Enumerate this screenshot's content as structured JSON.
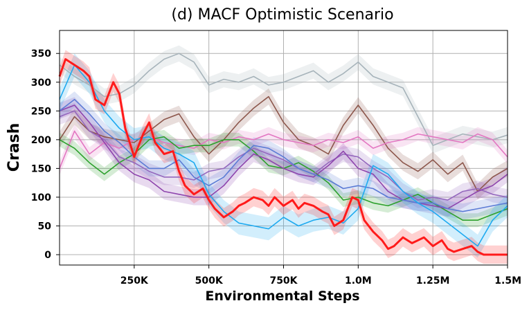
{
  "chart_data": {
    "type": "line",
    "title": "(d) MACF Optimistic Scenario",
    "xlabel": "Environmental Steps",
    "ylabel": "Crash",
    "xlim": [
      0,
      1.5
    ],
    "ylim": [
      -18,
      390
    ],
    "x_unit": "M steps",
    "xticks": [
      {
        "value": 0.25,
        "label": "250K"
      },
      {
        "value": 0.5,
        "label": "500K"
      },
      {
        "value": 0.75,
        "label": "750K"
      },
      {
        "value": 1.0,
        "label": "1.0M"
      },
      {
        "value": 1.25,
        "label": "1.25M"
      },
      {
        "value": 1.5,
        "label": "1.5M"
      }
    ],
    "yticks": [
      0,
      50,
      100,
      150,
      200,
      250,
      300,
      350
    ],
    "grid": true,
    "legend": "none",
    "series": [
      {
        "color": "#a6b3ba",
        "band": 14,
        "x": [
          0,
          0.05,
          0.1,
          0.15,
          0.2,
          0.25,
          0.3,
          0.35,
          0.4,
          0.45,
          0.5,
          0.55,
          0.6,
          0.65,
          0.7,
          0.75,
          0.8,
          0.85,
          0.9,
          0.95,
          1.0,
          1.05,
          1.1,
          1.15,
          1.2,
          1.25,
          1.3,
          1.35,
          1.4,
          1.45,
          1.5
        ],
        "y": [
          330,
          310,
          295,
          275,
          280,
          295,
          320,
          340,
          350,
          335,
          295,
          305,
          300,
          310,
          295,
          300,
          310,
          320,
          300,
          315,
          335,
          310,
          300,
          290,
          240,
          190,
          200,
          210,
          205,
          200,
          208
        ]
      },
      {
        "color": "#8c564b",
        "band": 14,
        "x": [
          0,
          0.05,
          0.1,
          0.15,
          0.2,
          0.25,
          0.3,
          0.35,
          0.4,
          0.45,
          0.5,
          0.55,
          0.6,
          0.65,
          0.7,
          0.75,
          0.8,
          0.85,
          0.9,
          0.95,
          1.0,
          1.05,
          1.1,
          1.15,
          1.2,
          1.25,
          1.3,
          1.35,
          1.4,
          1.45,
          1.5
        ],
        "y": [
          200,
          240,
          215,
          205,
          200,
          195,
          215,
          235,
          245,
          205,
          175,
          200,
          230,
          255,
          275,
          230,
          200,
          190,
          175,
          225,
          260,
          225,
          185,
          160,
          145,
          165,
          140,
          160,
          110,
          135,
          150
        ]
      },
      {
        "color": "#e377c2",
        "band": 12,
        "x": [
          0,
          0.05,
          0.1,
          0.15,
          0.2,
          0.25,
          0.3,
          0.35,
          0.4,
          0.45,
          0.5,
          0.55,
          0.6,
          0.65,
          0.7,
          0.75,
          0.8,
          0.85,
          0.9,
          0.95,
          1.0,
          1.05,
          1.1,
          1.15,
          1.2,
          1.25,
          1.3,
          1.35,
          1.4,
          1.45,
          1.5
        ],
        "y": [
          150,
          215,
          175,
          195,
          185,
          200,
          205,
          195,
          190,
          185,
          200,
          195,
          205,
          200,
          210,
          200,
          195,
          190,
          200,
          195,
          205,
          185,
          195,
          200,
          210,
          205,
          200,
          195,
          210,
          200,
          170
        ]
      },
      {
        "color": "#2ca02c",
        "band": 12,
        "x": [
          0,
          0.05,
          0.1,
          0.15,
          0.2,
          0.25,
          0.3,
          0.35,
          0.4,
          0.45,
          0.5,
          0.55,
          0.6,
          0.65,
          0.7,
          0.75,
          0.8,
          0.85,
          0.9,
          0.95,
          1.0,
          1.05,
          1.1,
          1.15,
          1.2,
          1.25,
          1.3,
          1.35,
          1.4,
          1.45,
          1.5
        ],
        "y": [
          200,
          185,
          160,
          140,
          160,
          175,
          200,
          205,
          185,
          190,
          190,
          200,
          200,
          180,
          155,
          150,
          160,
          145,
          125,
          95,
          100,
          90,
          85,
          95,
          105,
          90,
          75,
          60,
          60,
          70,
          80
        ]
      },
      {
        "color": "#9467bd",
        "band": 14,
        "x": [
          0,
          0.05,
          0.1,
          0.15,
          0.2,
          0.25,
          0.3,
          0.35,
          0.4,
          0.45,
          0.5,
          0.55,
          0.6,
          0.65,
          0.7,
          0.75,
          0.8,
          0.85,
          0.9,
          0.95,
          1.0,
          1.05,
          1.1,
          1.15,
          1.2,
          1.25,
          1.3,
          1.35,
          1.4,
          1.45,
          1.5
        ],
        "y": [
          240,
          250,
          215,
          200,
          170,
          160,
          145,
          135,
          135,
          130,
          145,
          150,
          170,
          185,
          175,
          165,
          150,
          140,
          160,
          175,
          170,
          150,
          135,
          110,
          95,
          100,
          95,
          110,
          115,
          105,
          100
        ]
      },
      {
        "color": "#8e44ad",
        "band": 14,
        "x": [
          0,
          0.05,
          0.1,
          0.15,
          0.2,
          0.25,
          0.3,
          0.35,
          0.4,
          0.45,
          0.5,
          0.55,
          0.6,
          0.65,
          0.7,
          0.75,
          0.8,
          0.85,
          0.9,
          0.95,
          1.0,
          1.05,
          1.1,
          1.15,
          1.2,
          1.25,
          1.3,
          1.35,
          1.4,
          1.45,
          1.5
        ],
        "y": [
          250,
          260,
          230,
          195,
          160,
          140,
          130,
          110,
          105,
          100,
          100,
          120,
          150,
          175,
          165,
          150,
          140,
          135,
          155,
          180,
          150,
          140,
          110,
          95,
          90,
          85,
          80,
          95,
          110,
          120,
          140
        ]
      },
      {
        "color": "#5b7bd5",
        "band": 14,
        "x": [
          0,
          0.05,
          0.1,
          0.15,
          0.2,
          0.25,
          0.3,
          0.35,
          0.4,
          0.45,
          0.5,
          0.55,
          0.6,
          0.65,
          0.7,
          0.75,
          0.8,
          0.85,
          0.9,
          0.95,
          1.0,
          1.05,
          1.1,
          1.15,
          1.2,
          1.25,
          1.3,
          1.35,
          1.4,
          1.45,
          1.5
        ],
        "y": [
          250,
          270,
          245,
          215,
          195,
          170,
          150,
          150,
          165,
          135,
          120,
          135,
          165,
          190,
          185,
          170,
          150,
          140,
          130,
          115,
          120,
          115,
          100,
          95,
          90,
          90,
          80,
          75,
          80,
          85,
          90
        ]
      },
      {
        "color": "#1eaaf0",
        "band": 20,
        "x": [
          0,
          0.05,
          0.1,
          0.15,
          0.2,
          0.25,
          0.3,
          0.35,
          0.4,
          0.45,
          0.5,
          0.55,
          0.6,
          0.65,
          0.7,
          0.75,
          0.8,
          0.85,
          0.9,
          0.95,
          1.0,
          1.05,
          1.1,
          1.15,
          1.2,
          1.25,
          1.3,
          1.35,
          1.4,
          1.45,
          1.5
        ],
        "y": [
          270,
          330,
          300,
          250,
          220,
          200,
          205,
          185,
          175,
          160,
          105,
          75,
          55,
          50,
          45,
          65,
          50,
          60,
          65,
          55,
          80,
          155,
          140,
          110,
          90,
          75,
          55,
          35,
          15,
          60,
          85
        ]
      },
      {
        "color": "#ff1a1a",
        "band": 16,
        "emphasis": true,
        "x": [
          0,
          0.02,
          0.05,
          0.08,
          0.1,
          0.12,
          0.15,
          0.18,
          0.2,
          0.22,
          0.25,
          0.28,
          0.3,
          0.32,
          0.35,
          0.38,
          0.4,
          0.42,
          0.45,
          0.48,
          0.5,
          0.52,
          0.55,
          0.58,
          0.6,
          0.62,
          0.65,
          0.68,
          0.7,
          0.72,
          0.75,
          0.78,
          0.8,
          0.82,
          0.85,
          0.88,
          0.9,
          0.92,
          0.95,
          0.98,
          1.0,
          1.02,
          1.05,
          1.08,
          1.1,
          1.12,
          1.15,
          1.18,
          1.2,
          1.22,
          1.25,
          1.28,
          1.3,
          1.32,
          1.35,
          1.38,
          1.4,
          1.42,
          1.45,
          1.48,
          1.5
        ],
        "y": [
          310,
          340,
          330,
          320,
          310,
          270,
          260,
          300,
          280,
          220,
          170,
          210,
          230,
          195,
          175,
          180,
          145,
          120,
          105,
          115,
          95,
          80,
          65,
          75,
          85,
          90,
          100,
          95,
          85,
          100,
          85,
          95,
          80,
          90,
          85,
          75,
          70,
          50,
          60,
          100,
          95,
          60,
          40,
          25,
          10,
          15,
          30,
          20,
          25,
          30,
          15,
          25,
          10,
          5,
          10,
          15,
          5,
          0,
          0,
          0,
          0
        ]
      }
    ]
  }
}
